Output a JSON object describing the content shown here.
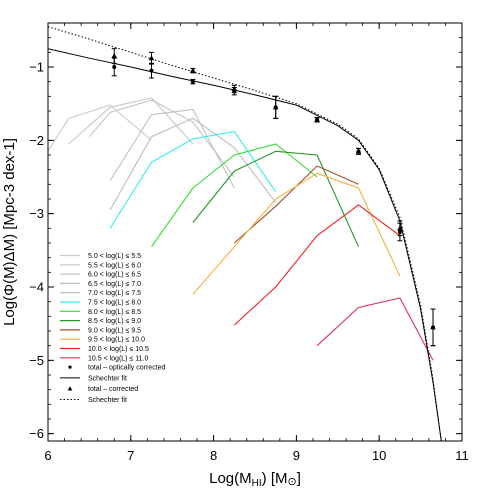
{
  "chart_data": {
    "type": "line",
    "xlabel_base": "Log(M",
    "xlabel_sub": "HI",
    "xlabel_tail": ") [M",
    "xlabel_sym": "⊙",
    "xlabel_end": "]",
    "ylabel": "Log(Φ(M)ΔM) [Mpc-3 dex-1]",
    "xlim": [
      6,
      11
    ],
    "ylim": [
      -6.1,
      -0.4
    ],
    "xticks": [
      "6",
      "7",
      "8",
      "9",
      "10",
      "11"
    ],
    "xtick_values": [
      6,
      7,
      8,
      9,
      10,
      11
    ],
    "yticks": [
      "−1",
      "−2",
      "−3",
      "−4",
      "−5",
      "−6"
    ],
    "ytick_values": [
      -1,
      -2,
      -3,
      -4,
      -5,
      -6
    ],
    "grid": false,
    "legend_position": "lower-left",
    "series": [
      {
        "name": "5.0 < log(L) ≤ 5.5",
        "color": "#cccccc",
        "x": [
          6.0,
          6.25,
          6.75,
          7.25
        ],
        "y": [
          -2.15,
          -1.7,
          -1.52,
          -2.0
        ]
      },
      {
        "name": "5.5 < log(L) ≤ 6.0",
        "color": "#c8c8c8",
        "x": [
          6.25,
          6.75,
          7.25,
          7.75
        ],
        "y": [
          -2.05,
          -1.55,
          -1.42,
          -2.05
        ]
      },
      {
        "name": "6.0 < log(L) ≤ 6.5",
        "color": "#c4c4c4",
        "x": [
          6.5,
          6.75,
          7.25,
          7.75,
          8.25
        ],
        "y": [
          -1.95,
          -1.62,
          -1.45,
          -1.75,
          -2.5
        ]
      },
      {
        "name": "6.5 < log(L) ≤ 7.0",
        "color": "#c0c0c0",
        "x": [
          6.75,
          7.25,
          7.75,
          8.25
        ],
        "y": [
          -2.55,
          -1.65,
          -1.58,
          -2.65
        ]
      },
      {
        "name": "7.0 < log(L) ≤ 7.5",
        "color": "#bdbdbd",
        "x": [
          6.75,
          7.25,
          7.75,
          8.25,
          8.75
        ],
        "y": [
          -2.95,
          -1.95,
          -1.7,
          -2.1,
          -2.85
        ]
      },
      {
        "name": "7.5 < log(L) ≤ 8.0",
        "color": "#33eeee",
        "x": [
          6.75,
          7.25,
          7.75,
          8.25,
          8.75
        ],
        "y": [
          -3.2,
          -2.3,
          -1.98,
          -1.88,
          -2.7
        ]
      },
      {
        "name": "8.0 < log(L) ≤ 8.5",
        "color": "#33dd33",
        "x": [
          7.25,
          7.75,
          8.25,
          8.75,
          9.25
        ],
        "y": [
          -3.45,
          -2.65,
          -2.2,
          -2.05,
          -2.5
        ]
      },
      {
        "name": "8.5 < log(L) ≤ 9.0",
        "color": "#229922",
        "x": [
          7.75,
          8.25,
          8.75,
          9.25,
          9.75
        ],
        "y": [
          -3.12,
          -2.42,
          -2.15,
          -2.2,
          -3.45
        ]
      },
      {
        "name": "9.0 < log(L) ≤ 9.5",
        "color": "#a0522d",
        "x": [
          8.25,
          8.75,
          9.25,
          9.75
        ],
        "y": [
          -3.4,
          -2.9,
          -2.35,
          -2.6
        ]
      },
      {
        "name": "9.5 < log(L) ≤ 10.0",
        "color": "#f5b041",
        "x": [
          7.75,
          8.25,
          8.75,
          9.25,
          9.75,
          10.25
        ],
        "y": [
          -4.1,
          -3.45,
          -2.8,
          -2.45,
          -2.65,
          -3.85
        ]
      },
      {
        "name": "10.0 < log(L) ≤ 10.5",
        "color": "#ee2222",
        "x": [
          8.25,
          8.75,
          9.25,
          9.75,
          10.25
        ],
        "y": [
          -4.52,
          -4.0,
          -3.3,
          -2.88,
          -3.3
        ]
      },
      {
        "name": "10.5 < log(L) ≤ 11.0",
        "color": "#dd3355",
        "x": [
          9.25,
          9.75,
          10.25,
          10.65
        ],
        "y": [
          -4.8,
          -4.28,
          -4.15,
          -5.0
        ]
      }
    ],
    "points_optical": {
      "name": "total – optically corrected",
      "x": [
        6.8,
        7.25,
        7.75,
        8.25,
        8.75,
        9.25,
        9.75,
        10.25,
        10.65
      ],
      "y": [
        -1.0,
        -1.05,
        -1.2,
        -1.33,
        -1.55,
        -1.72,
        -2.15,
        -3.25,
        -4.55
      ],
      "err": [
        0.12,
        0.1,
        0.03,
        0.05,
        0.15,
        0.03,
        0.04,
        0.12,
        0.25
      ]
    },
    "fit_optical": {
      "name": "Schechter fit",
      "x": [
        6.0,
        6.5,
        7.0,
        7.5,
        8.0,
        8.5,
        9.0,
        9.5,
        9.75,
        10.0,
        10.25,
        10.5,
        10.65,
        10.75
      ],
      "y": [
        -0.75,
        -0.88,
        -1.0,
        -1.13,
        -1.25,
        -1.38,
        -1.52,
        -1.8,
        -2.0,
        -2.4,
        -3.1,
        -4.3,
        -5.3,
        -6.1
      ]
    },
    "points_corrected": {
      "name": "total – corrected",
      "x": [
        6.8,
        7.25,
        7.75,
        8.25,
        8.75,
        9.25,
        9.75,
        10.25,
        10.65
      ],
      "y": [
        -0.85,
        -0.88,
        -1.05,
        -1.3,
        -1.55,
        -1.72,
        -2.15,
        -3.2,
        -4.55
      ],
      "err": [
        0.1,
        0.08,
        0.03,
        0.05,
        0.15,
        0.03,
        0.04,
        0.1,
        0.25
      ]
    },
    "fit_corrected": {
      "name": "Schechter fit",
      "x": [
        6.0,
        6.5,
        7.0,
        7.5,
        8.0,
        8.5,
        9.0,
        9.5,
        9.75,
        10.0,
        10.25,
        10.5,
        10.65,
        10.75
      ],
      "y": [
        -0.45,
        -0.62,
        -0.8,
        -0.98,
        -1.15,
        -1.32,
        -1.5,
        -1.78,
        -1.98,
        -2.38,
        -3.05,
        -4.25,
        -5.25,
        -6.1
      ]
    }
  }
}
